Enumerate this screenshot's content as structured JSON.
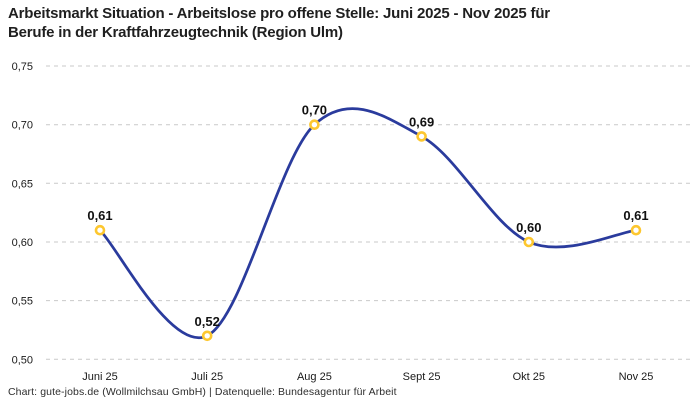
{
  "header": {
    "title_line1": "Arbeitsmarkt Situation - Arbeitslose pro offene Stelle: Juni 2025 - Nov 2025 für",
    "title_line2": "Berufe in der Kraftfahrzeugtechnik (Region Ulm)"
  },
  "footer": {
    "credit": "Chart: gute-jobs.de (Wollmilchsau GmbH) | Datenquelle: Bundesagentur für Arbeit"
  },
  "chart_data": {
    "type": "line",
    "title": "Arbeitsmarkt Situation - Arbeitslose pro offene Stelle: Juni 2025 - Nov 2025 für Berufe in der Kraftfahrzeugtechnik (Region Ulm)",
    "categories": [
      "Juni 25",
      "Juli 25",
      "Aug 25",
      "Sept 25",
      "Okt 25",
      "Nov 25"
    ],
    "values": [
      0.61,
      0.52,
      0.7,
      0.69,
      0.6,
      0.61
    ],
    "point_labels": [
      "0,61",
      "0,52",
      "0,70",
      "0,69",
      "0,60",
      "0,61"
    ],
    "y_ticks": [
      0.5,
      0.55,
      0.6,
      0.65,
      0.7,
      0.75
    ],
    "y_tick_labels": [
      "0,50",
      "0,55",
      "0,60",
      "0,65",
      "0,70",
      "0,75"
    ],
    "ylim": [
      0.5,
      0.75
    ],
    "xlabel": "",
    "ylabel": "",
    "grid": "horizontal-dashed",
    "legend": "none",
    "curve": "smooth-spline",
    "colors": {
      "line": "#2a3b9d",
      "marker_ring": "#fdc72f",
      "marker_fill": "#ffffff",
      "gridline": "#c9c9c9",
      "axis_text": "#1a1a1a",
      "point_label_text": "#111111"
    }
  }
}
